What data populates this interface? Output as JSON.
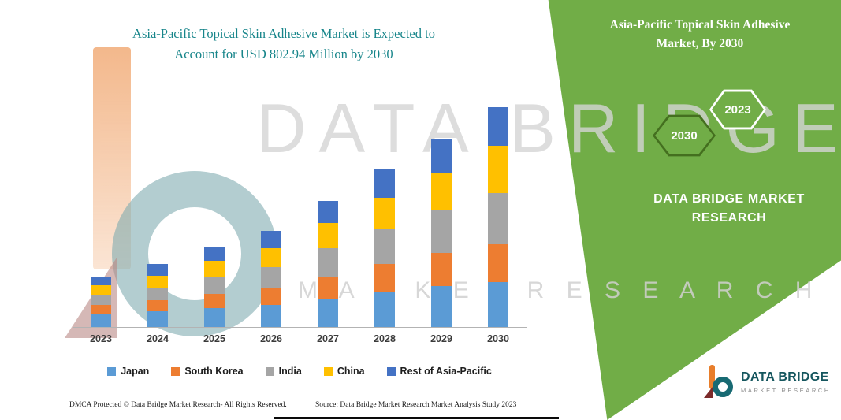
{
  "page": {
    "title_line1": "Asia-Pacific Topical Skin Adhesive Market is Expected to",
    "title_line2": "Account for USD 802.94 Million by 2030"
  },
  "side_panel": {
    "accent_green": "#71ad47",
    "title_line1": "Asia-Pacific Topical Skin Adhesive",
    "title_line2": "Market, By 2030",
    "hexagons": [
      {
        "label": "2030"
      },
      {
        "label": "2023"
      }
    ],
    "brand_line1": "DATA BRIDGE MARKET",
    "brand_line2": "RESEARCH"
  },
  "watermark": {
    "line1": "DATA BRIDGE",
    "line2": "M A R K E T   R E S E A R C H"
  },
  "chart_data": {
    "type": "bar",
    "stacked": true,
    "title": "Asia-Pacific Topical Skin Adhesive Market is Expected to Account for USD 802.94 Million by 2030",
    "unit": "USD Million",
    "categories": [
      "2023",
      "2024",
      "2025",
      "2026",
      "2027",
      "2028",
      "2029",
      "2030"
    ],
    "series": [
      {
        "name": "Japan",
        "color": "#5B9BD5",
        "values": [
          46,
          58,
          69,
          81,
          104,
          127,
          150,
          164
        ]
      },
      {
        "name": "South Korea",
        "color": "#ED7D31",
        "values": [
          35,
          40,
          52,
          63,
          81,
          104,
          121,
          138
        ]
      },
      {
        "name": "India",
        "color": "#A5A5A5",
        "values": [
          35,
          46,
          63,
          75,
          104,
          127,
          156,
          187
        ]
      },
      {
        "name": "China",
        "color": "#FFC000",
        "values": [
          35,
          43,
          58,
          69,
          92,
          115,
          138,
          173
        ]
      },
      {
        "name": "Rest of Asia-Pacific",
        "color": "#4472C4",
        "values": [
          32,
          43,
          52,
          63,
          81,
          104,
          121,
          141
        ]
      }
    ],
    "totals": [
      183,
      230,
      294,
      351,
      462,
      577,
      686,
      803
    ],
    "ylim": [
      0,
      850
    ],
    "y_axis_visible": false,
    "grid": false,
    "legend_position": "bottom"
  },
  "logo": {
    "name": "DATA BRIDGE",
    "subtitle": "MARKET RESEARCH"
  },
  "footer": {
    "left": "DMCA Protected © Data Bridge Market Research-  All Rights Reserved.",
    "source": "Source: Data Bridge Market Research  Market Analysis Study 2023"
  }
}
